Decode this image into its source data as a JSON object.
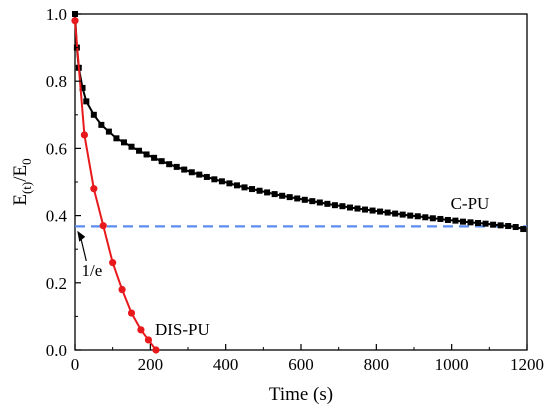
{
  "chart_data": {
    "type": "line",
    "xlabel": "Time (s)",
    "ylabel": {
      "base": "E",
      "sub1": "(t)",
      "slash": "/E",
      "sub2": "0"
    },
    "xlim": [
      0,
      1200
    ],
    "ylim": [
      0,
      1.0
    ],
    "x_ticks": [
      0,
      200,
      400,
      600,
      800,
      1000,
      1200
    ],
    "y_ticks": [
      0.0,
      0.2,
      0.4,
      0.6,
      0.8,
      1.0
    ],
    "x_tick_labels": [
      "0",
      "200",
      "400",
      "600",
      "800",
      "1000",
      "1200"
    ],
    "y_tick_labels": [
      "0.0",
      "0.2",
      "0.4",
      "0.6",
      "0.8",
      "1.0"
    ],
    "grid": false,
    "series": [
      {
        "name": "C-PU",
        "color": "#000000",
        "marker": "square",
        "x": [
          0,
          5,
          10,
          20,
          30,
          50,
          70,
          90,
          110,
          130,
          150,
          170,
          190,
          210,
          230,
          250,
          270,
          290,
          310,
          330,
          350,
          370,
          390,
          410,
          430,
          450,
          470,
          490,
          510,
          530,
          550,
          570,
          590,
          610,
          630,
          650,
          670,
          690,
          710,
          730,
          750,
          770,
          790,
          810,
          830,
          850,
          870,
          890,
          910,
          930,
          950,
          970,
          990,
          1010,
          1030,
          1050,
          1070,
          1090,
          1110,
          1130,
          1150,
          1170,
          1190
        ],
        "y": [
          1.0,
          0.9,
          0.84,
          0.78,
          0.74,
          0.7,
          0.67,
          0.65,
          0.63,
          0.618,
          0.605,
          0.593,
          0.582,
          0.572,
          0.562,
          0.553,
          0.545,
          0.537,
          0.529,
          0.522,
          0.515,
          0.508,
          0.502,
          0.496,
          0.49,
          0.484,
          0.479,
          0.474,
          0.469,
          0.464,
          0.459,
          0.455,
          0.451,
          0.447,
          0.443,
          0.439,
          0.435,
          0.431,
          0.428,
          0.424,
          0.421,
          0.418,
          0.415,
          0.412,
          0.409,
          0.406,
          0.403,
          0.4,
          0.398,
          0.395,
          0.392,
          0.39,
          0.387,
          0.385,
          0.382,
          0.38,
          0.378,
          0.376,
          0.373,
          0.371,
          0.369,
          0.366,
          0.36
        ]
      },
      {
        "name": "DIS-PU",
        "color": "#e8191c",
        "marker": "circle",
        "x": [
          0,
          25,
          50,
          75,
          100,
          125,
          150,
          175,
          195,
          215
        ],
        "y": [
          0.98,
          0.64,
          0.48,
          0.37,
          0.26,
          0.18,
          0.11,
          0.06,
          0.03,
          0.0
        ]
      }
    ],
    "reference_line": {
      "label": "1/e",
      "y": 0.368,
      "color": "#5b8def",
      "style": "dashed"
    },
    "annotations": [
      {
        "text": "C-PU",
        "x": 1100,
        "y": 0.42
      },
      {
        "text": "DIS-PU",
        "x": 285,
        "y": 0.045
      },
      {
        "text": "1/e",
        "x": 45,
        "y": 0.22
      }
    ]
  }
}
